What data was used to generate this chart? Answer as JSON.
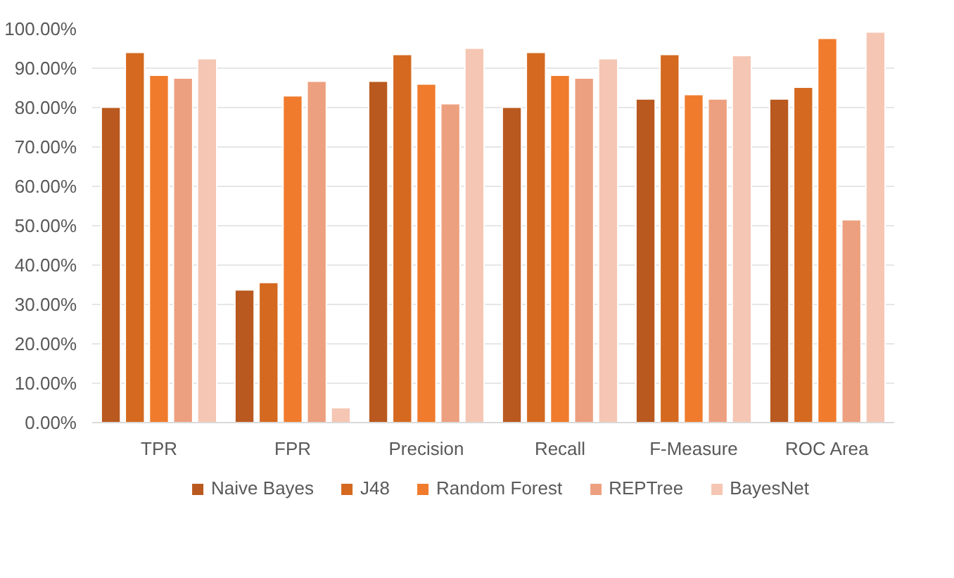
{
  "chart_data": {
    "type": "bar",
    "categories": [
      "TPR",
      "FPR",
      "Precision",
      "Recall",
      "F-Measure",
      "ROC Area"
    ],
    "series": [
      {
        "name": "Naive Bayes",
        "color": "#b9591f",
        "values": [
          80.1,
          33.7,
          86.7,
          80.1,
          82.2,
          82.2
        ]
      },
      {
        "name": "J48",
        "color": "#d4691f",
        "values": [
          94.0,
          35.6,
          93.5,
          94.0,
          93.5,
          85.2
        ]
      },
      {
        "name": "Random Forest",
        "color": "#f07b2c",
        "values": [
          88.2,
          83.0,
          86.0,
          88.2,
          83.3,
          97.6
        ]
      },
      {
        "name": "REPTree",
        "color": "#eda07f",
        "values": [
          87.5,
          86.7,
          81.0,
          87.5,
          82.2,
          51.5
        ]
      },
      {
        "name": "BayesNet",
        "color": "#f5c6b3",
        "values": [
          92.4,
          3.8,
          95.1,
          92.4,
          93.2,
          99.2
        ]
      }
    ],
    "ylim": [
      0,
      100
    ],
    "yticks": [
      {
        "value": 0,
        "label": "0.00%"
      },
      {
        "value": 10,
        "label": "10.00%"
      },
      {
        "value": 20,
        "label": "20.00%"
      },
      {
        "value": 30,
        "label": "30.00%"
      },
      {
        "value": 40,
        "label": "40.00%"
      },
      {
        "value": 50,
        "label": "50.00%"
      },
      {
        "value": 60,
        "label": "60.00%"
      },
      {
        "value": 70,
        "label": "70.00%"
      },
      {
        "value": 80,
        "label": "80.00%"
      },
      {
        "value": 90,
        "label": "90.00%"
      },
      {
        "value": 100,
        "label": "100.00%"
      }
    ],
    "grid": "y",
    "legend": "bottom"
  }
}
